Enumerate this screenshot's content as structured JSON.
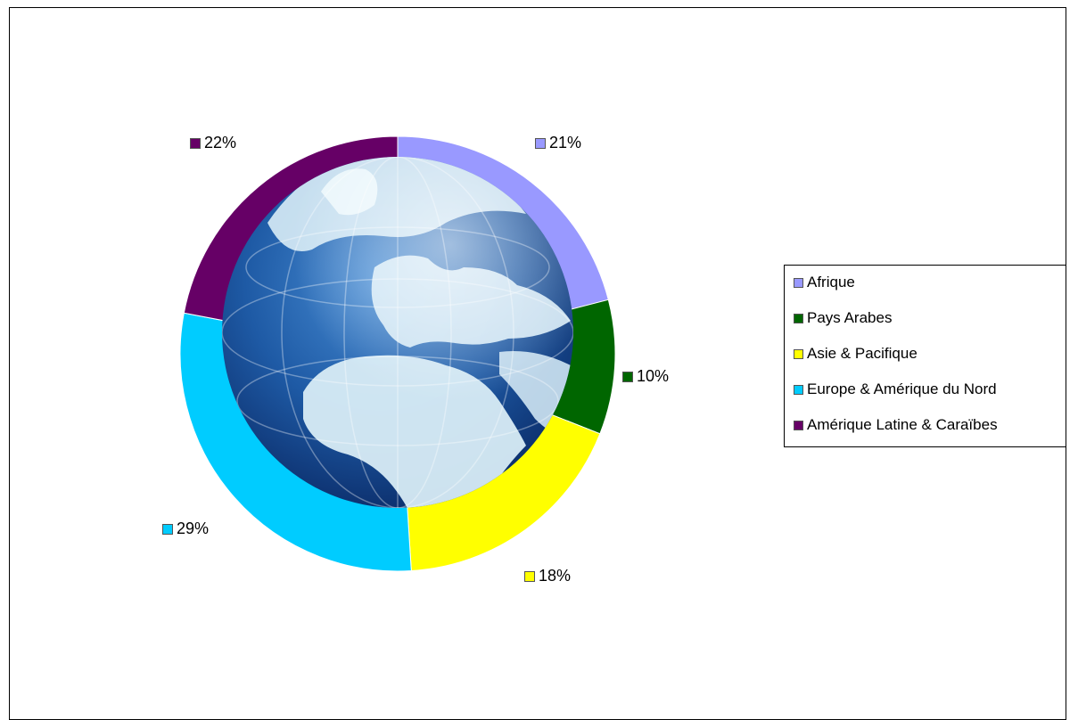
{
  "chart_data": {
    "type": "pie",
    "style": "donut-ring-around-globe",
    "categories": [
      "Afrique",
      "Pays Arabes",
      "Asie & Pacifique",
      "Europe & Amérique du Nord",
      "Amérique Latine & Caraïbes"
    ],
    "values": [
      21,
      10,
      18,
      29,
      22
    ],
    "value_labels": [
      "21%",
      "10%",
      "18%",
      "29%",
      "22%"
    ],
    "colors": [
      "#9999ff",
      "#006600",
      "#ffff00",
      "#00ccff",
      "#660066"
    ],
    "legend_position": "right",
    "title": ""
  },
  "globe": {
    "icon": "globe-icon",
    "ocean_color": "#1f5fa8",
    "land_color": "#d8ecf6"
  }
}
